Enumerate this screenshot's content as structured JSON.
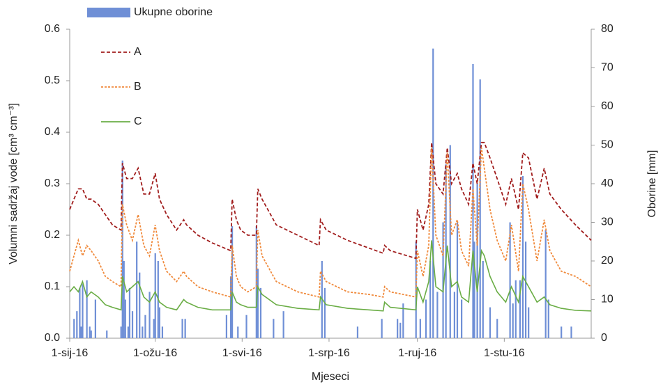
{
  "chart_data": {
    "type": "bar-line",
    "x_label": "Mjeseci",
    "y_label": "Volumni sadržaj vode [cm³ cm⁻³]",
    "y2_label": "Oborine [mm]",
    "xlim": [
      0,
      366
    ],
    "xticks": [
      {
        "value": 0,
        "label": "1-sij-16"
      },
      {
        "value": 60,
        "label": "1-ožu-16"
      },
      {
        "value": 121,
        "label": "1-svi-16"
      },
      {
        "value": 182,
        "label": "1-srp-16"
      },
      {
        "value": 244,
        "label": "1-ruj-16"
      },
      {
        "value": 305,
        "label": "1-stu-16"
      }
    ],
    "ylim": [
      0,
      0.6
    ],
    "yticks": [
      {
        "value": 0,
        "label": "0.0"
      },
      0.1,
      0.2,
      0.3,
      0.4,
      0.5,
      0.6
    ],
    "y2lim": [
      0,
      80
    ],
    "y2ticks": [
      0,
      10,
      20,
      30,
      40,
      50,
      60,
      70,
      80
    ],
    "legend": "top-left",
    "x": [
      0,
      3,
      6,
      9,
      12,
      15,
      20,
      25,
      30,
      36,
      37,
      40,
      44,
      48,
      52,
      56,
      60,
      63,
      68,
      75,
      80,
      82,
      90,
      100,
      113,
      114,
      117,
      120,
      125,
      131,
      132,
      135,
      145,
      160,
      175,
      176,
      180,
      195,
      210,
      220,
      221,
      225,
      243,
      244,
      248,
      252,
      254,
      257,
      262,
      265,
      268,
      272,
      275,
      280,
      283,
      286,
      289,
      291,
      295,
      300,
      306,
      310,
      315,
      318,
      322,
      328,
      333,
      337,
      345,
      355,
      366
    ],
    "series": [
      {
        "name": "Ukupne oborine",
        "mark": "bar",
        "axis": "y2",
        "color": "#6f8fd6",
        "x": [
          3,
          5,
          7,
          8,
          9,
          12,
          14,
          15,
          18,
          26,
          36,
          37,
          38,
          39,
          41,
          42,
          44,
          47,
          49,
          51,
          53,
          56,
          59,
          60,
          62,
          63,
          65,
          79,
          81,
          110,
          113,
          114,
          118,
          124,
          131,
          132,
          134,
          143,
          150,
          177,
          179,
          202,
          219,
          230,
          232,
          234,
          243,
          246,
          250,
          253,
          255,
          258,
          262,
          264,
          267,
          270,
          272,
          275,
          283,
          284,
          286,
          288,
          290,
          295,
          300,
          309,
          311,
          313,
          316,
          318,
          320,
          322,
          334,
          336,
          345,
          352
        ],
        "values": [
          5,
          7,
          13,
          3,
          14,
          15,
          3,
          2,
          10,
          2,
          3,
          46,
          20,
          10,
          3,
          13,
          7,
          25,
          17,
          3,
          6,
          12,
          5,
          22,
          20,
          8,
          3,
          5,
          5,
          6,
          16,
          29,
          3,
          6,
          29,
          18,
          13,
          5,
          7,
          20,
          13,
          3,
          5,
          5,
          4,
          9,
          25,
          5,
          10,
          20,
          75,
          12,
          30,
          45,
          50,
          12,
          30,
          10,
          71,
          25,
          40,
          67,
          20,
          8,
          5,
          30,
          9,
          15,
          15,
          42,
          25,
          8,
          28,
          10,
          3,
          3
        ]
      },
      {
        "name": "A",
        "mark": "line",
        "style": "dashed",
        "color": "#a11d1d",
        "values": [
          0.25,
          0.27,
          0.29,
          0.29,
          0.27,
          0.27,
          0.26,
          0.24,
          0.22,
          0.21,
          0.34,
          0.31,
          0.31,
          0.33,
          0.28,
          0.28,
          0.32,
          0.27,
          0.24,
          0.21,
          0.23,
          0.22,
          0.2,
          0.185,
          0.17,
          0.27,
          0.23,
          0.21,
          0.2,
          0.2,
          0.29,
          0.27,
          0.22,
          0.2,
          0.18,
          0.23,
          0.21,
          0.19,
          0.175,
          0.165,
          0.18,
          0.17,
          0.155,
          0.25,
          0.21,
          0.26,
          0.38,
          0.3,
          0.28,
          0.37,
          0.3,
          0.32,
          0.29,
          0.26,
          0.34,
          0.3,
          0.38,
          0.38,
          0.35,
          0.31,
          0.26,
          0.31,
          0.25,
          0.36,
          0.35,
          0.27,
          0.33,
          0.28,
          0.25,
          0.22,
          0.19
        ]
      },
      {
        "name": "B",
        "mark": "line",
        "style": "dotted",
        "color": "#f08a3c",
        "values": [
          0.13,
          0.16,
          0.19,
          0.16,
          0.18,
          0.17,
          0.15,
          0.12,
          0.11,
          0.1,
          0.26,
          0.22,
          0.19,
          0.24,
          0.18,
          0.16,
          0.22,
          0.17,
          0.13,
          0.11,
          0.13,
          0.12,
          0.1,
          0.09,
          0.08,
          0.18,
          0.12,
          0.1,
          0.09,
          0.1,
          0.21,
          0.16,
          0.11,
          0.09,
          0.08,
          0.13,
          0.11,
          0.09,
          0.085,
          0.08,
          0.1,
          0.09,
          0.08,
          0.17,
          0.12,
          0.18,
          0.37,
          0.2,
          0.16,
          0.36,
          0.2,
          0.23,
          0.17,
          0.14,
          0.29,
          0.18,
          0.37,
          0.33,
          0.25,
          0.19,
          0.15,
          0.22,
          0.13,
          0.3,
          0.25,
          0.15,
          0.23,
          0.17,
          0.13,
          0.12,
          0.1
        ]
      },
      {
        "name": "C",
        "mark": "line",
        "style": "solid",
        "color": "#6aad45",
        "values": [
          0.09,
          0.1,
          0.09,
          0.11,
          0.08,
          0.09,
          0.08,
          0.065,
          0.06,
          0.055,
          0.12,
          0.09,
          0.1,
          0.11,
          0.08,
          0.07,
          0.09,
          0.07,
          0.06,
          0.055,
          0.075,
          0.07,
          0.06,
          0.055,
          0.055,
          0.09,
          0.07,
          0.065,
          0.06,
          0.06,
          0.1,
          0.085,
          0.065,
          0.058,
          0.055,
          0.08,
          0.065,
          0.058,
          0.055,
          0.053,
          0.07,
          0.06,
          0.055,
          0.1,
          0.07,
          0.11,
          0.19,
          0.1,
          0.09,
          0.18,
          0.1,
          0.11,
          0.08,
          0.07,
          0.17,
          0.09,
          0.17,
          0.16,
          0.12,
          0.09,
          0.07,
          0.1,
          0.07,
          0.12,
          0.1,
          0.07,
          0.08,
          0.065,
          0.058,
          0.054,
          0.053
        ]
      }
    ]
  }
}
